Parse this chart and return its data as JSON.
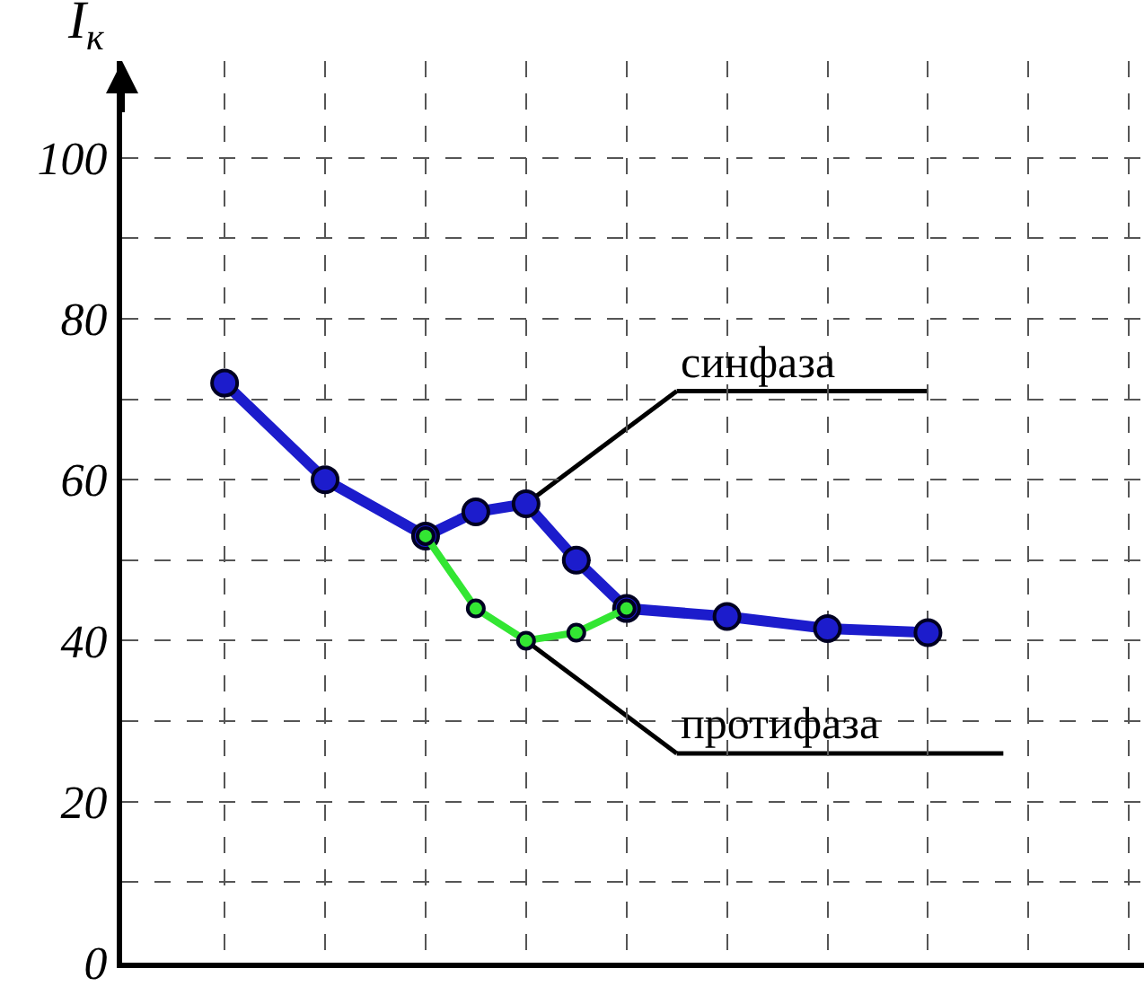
{
  "chart_data": {
    "type": "line",
    "ylabel": "I$_{к}$",
    "categories": [
      null,
      null,
      null,
      null,
      null,
      null,
      null,
      null,
      null,
      null,
      null,
      null,
      null,
      null,
      null
    ],
    "series": [
      {
        "name": "синфаза",
        "color": "#1c1ccc",
        "values": [
          72,
          null,
          60,
          null,
          53,
          56,
          57,
          50,
          44,
          null,
          43,
          null,
          41.5,
          null,
          41
        ]
      },
      {
        "name": "протифаза",
        "color": "#33e633",
        "values": [
          null,
          null,
          null,
          null,
          53,
          44,
          40,
          41,
          44,
          null,
          null,
          null,
          null,
          null,
          null
        ]
      }
    ],
    "ylim": [
      0,
      112
    ],
    "yticks": [
      0,
      {
        "value": 10,
        "label": null
      },
      20,
      {
        "value": 30,
        "label": null
      },
      40,
      {
        "value": 50,
        "label": null
      },
      60,
      {
        "value": 70,
        "label": null
      },
      80,
      {
        "value": 90,
        "label": null
      },
      100
    ],
    "grid": true,
    "legend": false,
    "marker": "circle",
    "line_style": "solid",
    "tick_labels": "y"
  }
}
